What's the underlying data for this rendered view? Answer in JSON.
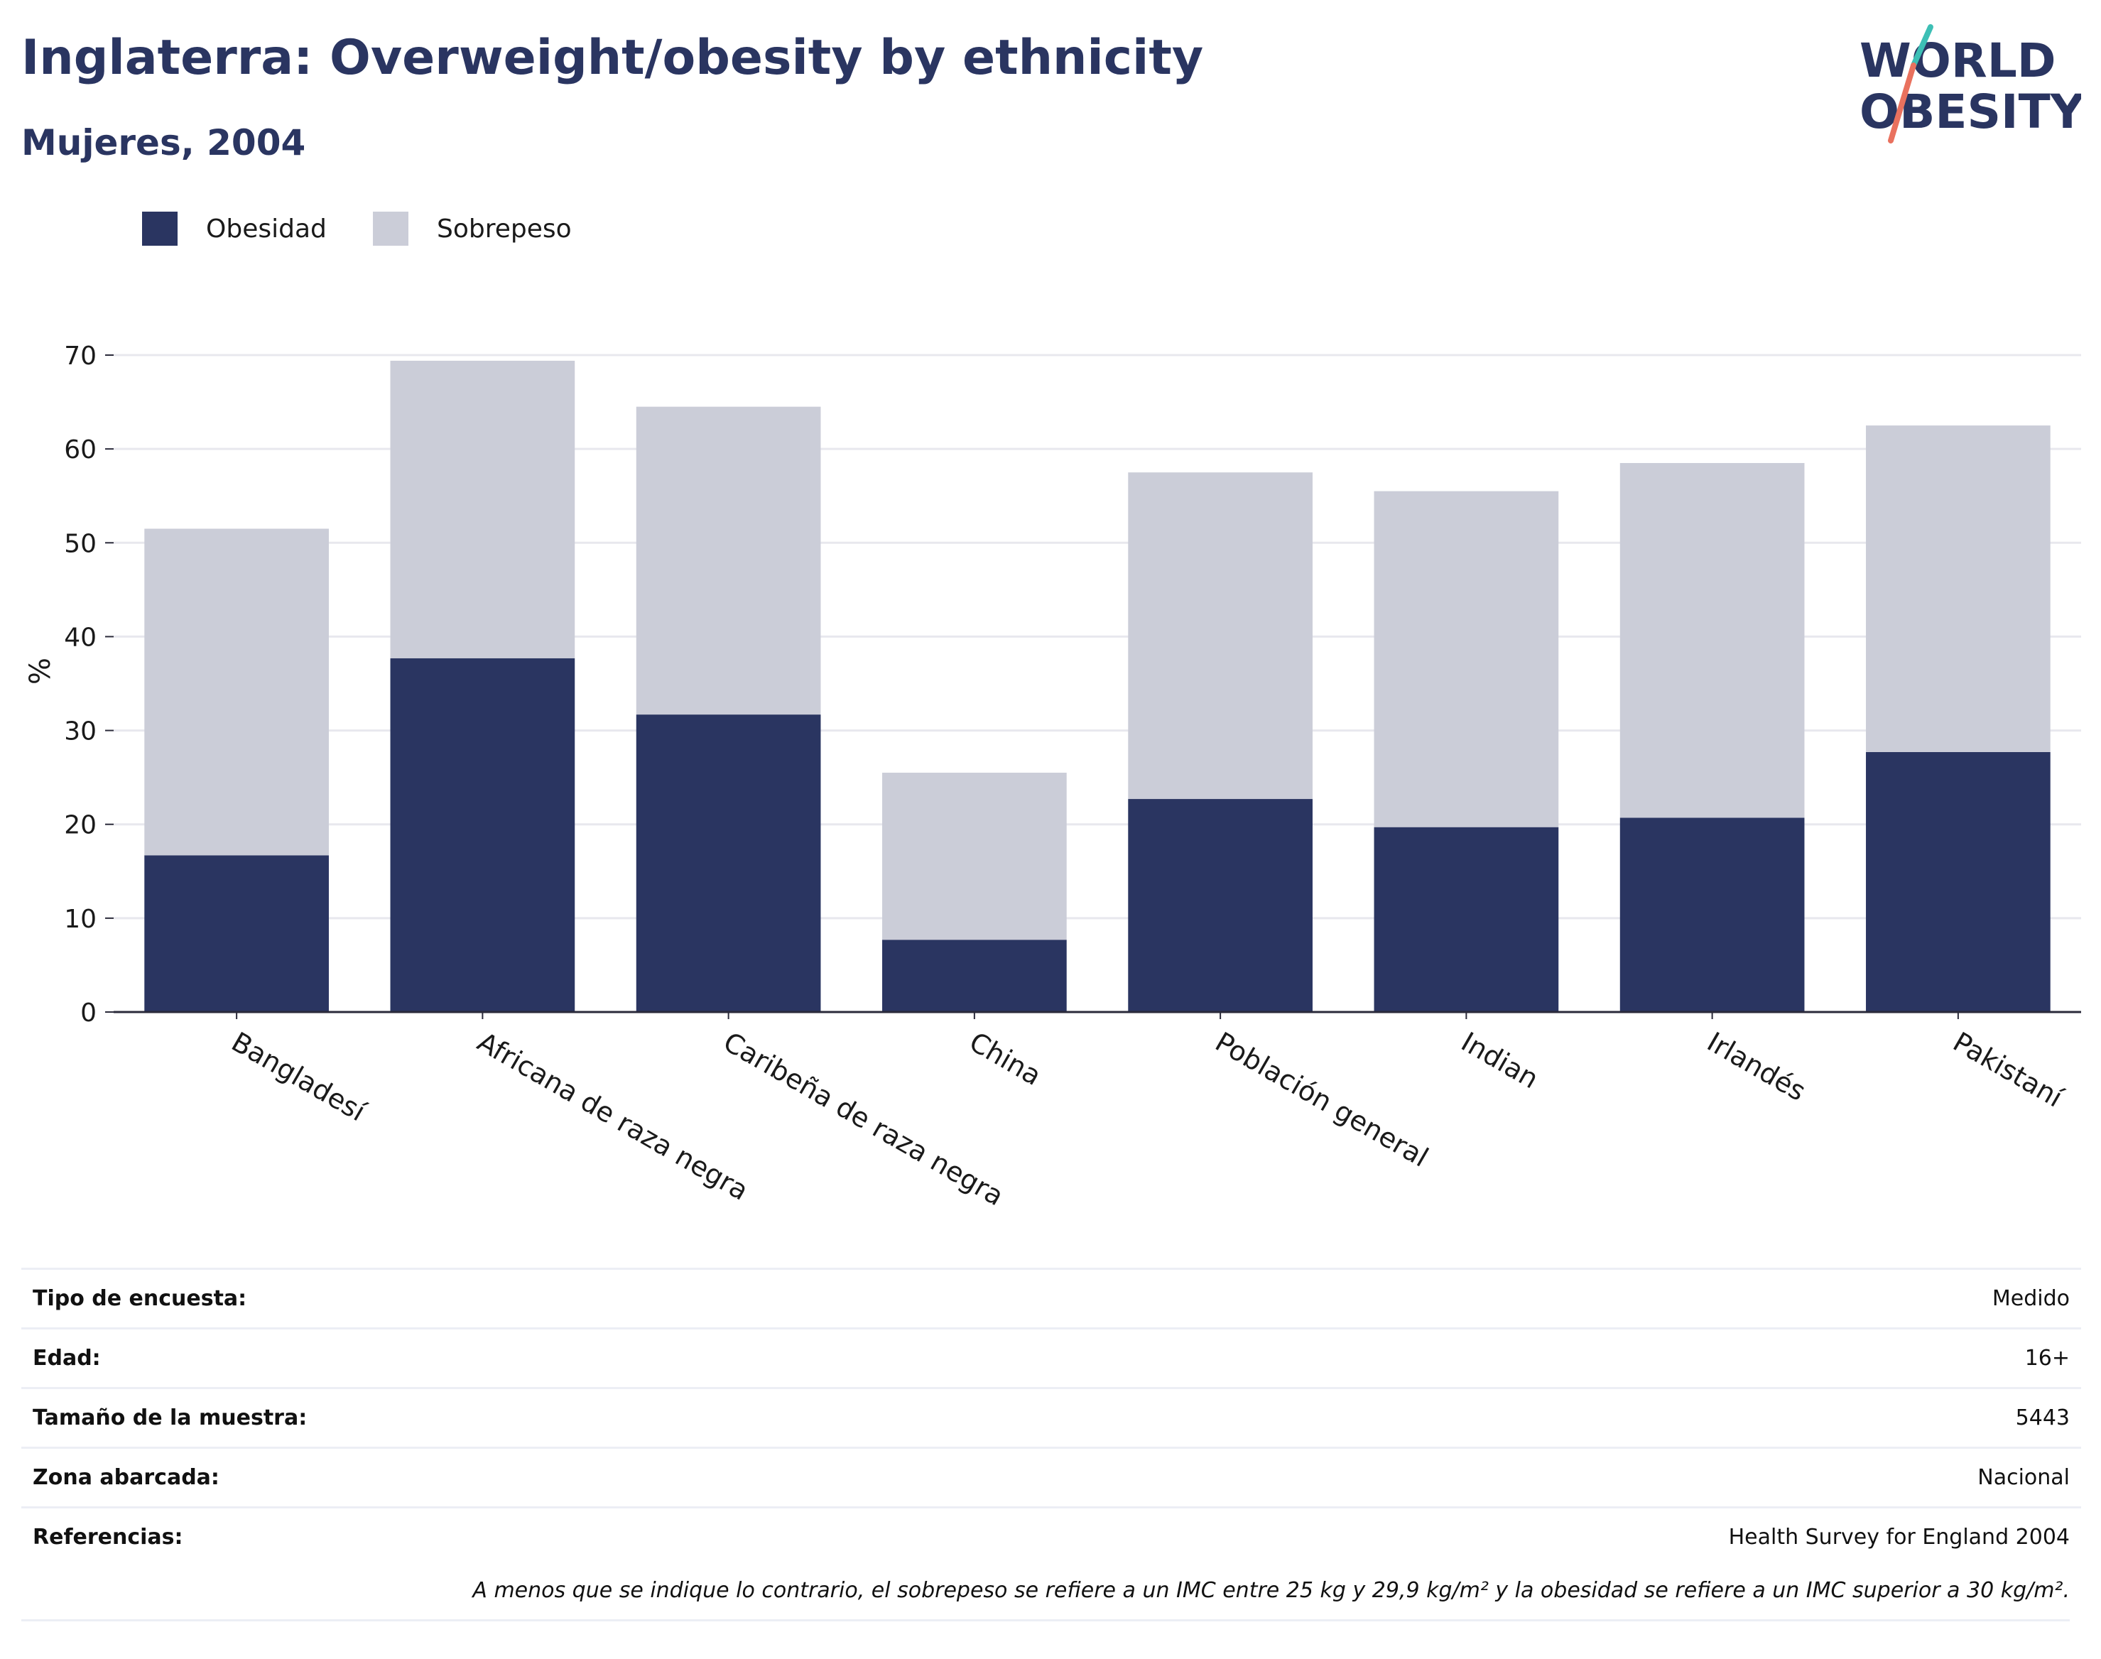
{
  "header": {
    "title": "Inglaterra: Overweight/obesity by ethnicity",
    "subtitle": "Mujeres, 2004"
  },
  "logo": {
    "line1": "WORLD",
    "line2": "OBESITY"
  },
  "colors": {
    "obesity": "#2a3561",
    "overweight": "#cbcdd8",
    "axis": "#2a2a3a",
    "grid": "#e8e8ee"
  },
  "chart_data": {
    "type": "bar",
    "stacked": true,
    "categories": [
      "Bangladesí",
      "Africana de raza negra",
      "Caribeña de raza negra",
      "China",
      "Población general",
      "Indian",
      "Irlandés",
      "Pakistaní"
    ],
    "series": [
      {
        "name": "Obesidad",
        "values": [
          16.7,
          37.7,
          31.7,
          7.7,
          22.7,
          19.7,
          20.7,
          27.7
        ]
      },
      {
        "name": "Sobrepeso",
        "values": [
          34.8,
          31.7,
          32.8,
          17.8,
          34.8,
          35.8,
          37.8,
          34.8
        ]
      }
    ],
    "ylabel": "%",
    "ylim": [
      0,
      70
    ],
    "yticks": [
      0,
      10,
      20,
      30,
      40,
      50,
      60,
      70
    ],
    "grid": true,
    "legend": "top-left"
  },
  "meta": [
    {
      "label": "Tipo de encuesta:",
      "value": "Medido"
    },
    {
      "label": "Edad:",
      "value": "16+"
    },
    {
      "label": "Tamaño de la muestra:",
      "value": "5443"
    },
    {
      "label": "Zona abarcada:",
      "value": "Nacional"
    },
    {
      "label": "Referencias:",
      "value": "Health Survey for England 2004"
    }
  ],
  "footnote": "A menos que se indique lo contrario, el sobrepeso se refiere a un IMC entre 25 kg y 29,9 kg/m² y la obesidad se refiere a un IMC superior a 30 kg/m²."
}
